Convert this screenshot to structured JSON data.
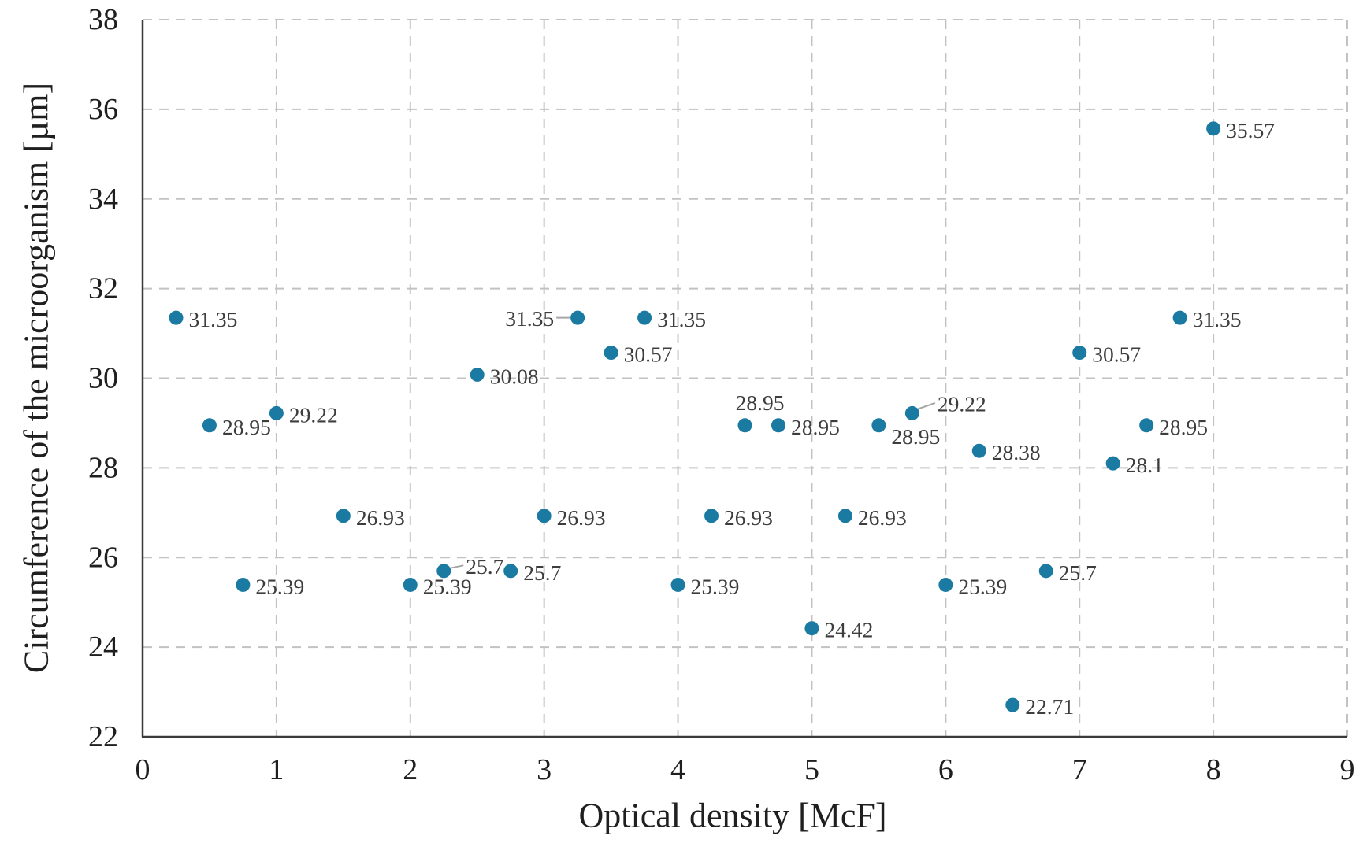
{
  "figure": {
    "background": "#ffffff"
  },
  "chart_data": {
    "type": "scatter",
    "title": "",
    "xlabel": "Optical density [McF]",
    "ylabel": "Circumference of the microorganism [µm]",
    "xlim": [
      0,
      9
    ],
    "ylim": [
      22,
      38
    ],
    "x_ticks": [
      "0",
      "1",
      "2",
      "3",
      "4",
      "5",
      "6",
      "7",
      "8",
      "9"
    ],
    "y_ticks": [
      "22",
      "24",
      "26",
      "28",
      "30",
      "32",
      "34",
      "36",
      "38"
    ],
    "grid": "dashed",
    "legend": "none",
    "marker_color": "#1b7aa1",
    "label_color": "#3d3d3d",
    "gridline_color": "#c2c2c2",
    "axis_line_color": "#3a3a3a",
    "leader_color": "#a6a6a6",
    "points": [
      {
        "x": 0.25,
        "y": 31.35,
        "label": "31.35",
        "label_pos": "right"
      },
      {
        "x": 0.5,
        "y": 28.95,
        "label": "28.95",
        "label_pos": "right"
      },
      {
        "x": 0.75,
        "y": 25.39,
        "label": "25.39",
        "label_pos": "right"
      },
      {
        "x": 1.0,
        "y": 29.22,
        "label": "29.22",
        "label_pos": "right"
      },
      {
        "x": 1.5,
        "y": 26.93,
        "label": "26.93",
        "label_pos": "right"
      },
      {
        "x": 2.0,
        "y": 25.39,
        "label": "25.39",
        "label_pos": "right"
      },
      {
        "x": 2.25,
        "y": 25.7,
        "label": "25.7",
        "label_pos": "right-leader"
      },
      {
        "x": 2.5,
        "y": 30.08,
        "label": "30.08",
        "label_pos": "right"
      },
      {
        "x": 2.75,
        "y": 25.7,
        "label": "25.7",
        "label_pos": "right"
      },
      {
        "x": 3.0,
        "y": 26.93,
        "label": "26.93",
        "label_pos": "right"
      },
      {
        "x": 3.25,
        "y": 31.35,
        "label": "31.35",
        "label_pos": "left-leader"
      },
      {
        "x": 3.5,
        "y": 30.57,
        "label": "30.57",
        "label_pos": "right"
      },
      {
        "x": 3.75,
        "y": 31.35,
        "label": "31.35",
        "label_pos": "right"
      },
      {
        "x": 4.0,
        "y": 25.39,
        "label": "25.39",
        "label_pos": "right"
      },
      {
        "x": 4.25,
        "y": 26.93,
        "label": "26.93",
        "label_pos": "right"
      },
      {
        "x": 4.5,
        "y": 28.95,
        "label": "28.95",
        "label_pos": "above"
      },
      {
        "x": 4.75,
        "y": 28.95,
        "label": "28.95",
        "label_pos": "right"
      },
      {
        "x": 5.0,
        "y": 24.42,
        "label": "24.42",
        "label_pos": "right"
      },
      {
        "x": 5.25,
        "y": 26.93,
        "label": "26.93",
        "label_pos": "right"
      },
      {
        "x": 5.5,
        "y": 28.95,
        "label": "28.95",
        "label_pos": "below-right"
      },
      {
        "x": 5.75,
        "y": 29.22,
        "label": "29.22",
        "label_pos": "right-up-leader"
      },
      {
        "x": 6.0,
        "y": 25.39,
        "label": "25.39",
        "label_pos": "right"
      },
      {
        "x": 6.25,
        "y": 28.38,
        "label": "28.38",
        "label_pos": "right"
      },
      {
        "x": 6.5,
        "y": 22.71,
        "label": "22.71",
        "label_pos": "right"
      },
      {
        "x": 6.75,
        "y": 25.7,
        "label": "25.7",
        "label_pos": "right"
      },
      {
        "x": 7.0,
        "y": 30.57,
        "label": "30.57",
        "label_pos": "right"
      },
      {
        "x": 7.25,
        "y": 28.1,
        "label": "28.1",
        "label_pos": "right"
      },
      {
        "x": 7.5,
        "y": 28.95,
        "label": "28.95",
        "label_pos": "right"
      },
      {
        "x": 7.75,
        "y": 31.35,
        "label": "31.35",
        "label_pos": "right"
      },
      {
        "x": 8.0,
        "y": 35.57,
        "label": "35.57",
        "label_pos": "right"
      }
    ]
  }
}
